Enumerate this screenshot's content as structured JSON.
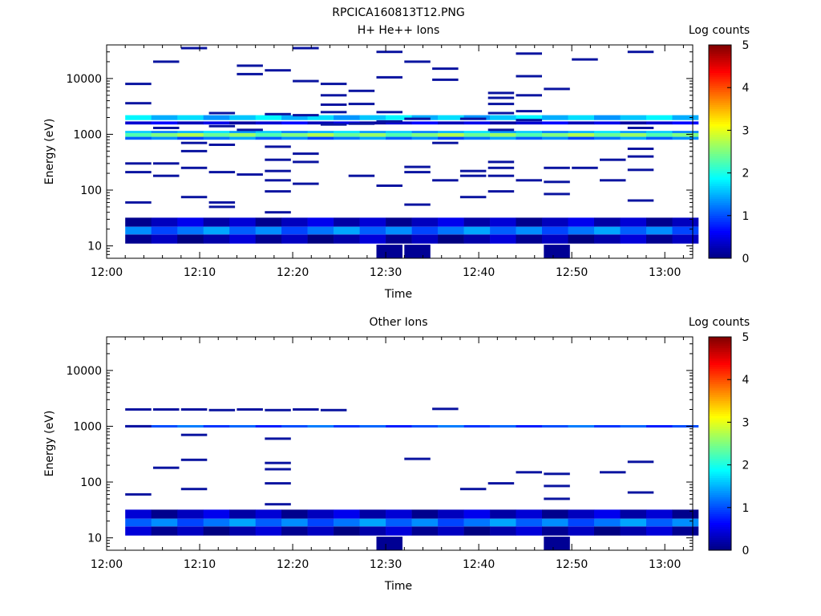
{
  "figure": {
    "title": "RPCICA160813T12.PNG"
  },
  "colors": {
    "band_top": [
      "#1e3cff",
      "#00c8ff",
      "#00e0c0",
      "#b4e01e",
      "#e6e61e",
      "#60e080",
      "#1e64ff"
    ],
    "band_mid": "#0a14b4",
    "low_bands": [
      "#0000a0",
      "#1e50ff",
      "#14b4ff",
      "#0a14c8"
    ]
  },
  "chart_data": [
    {
      "type": "heatmap",
      "title": "H+ He++ Ions",
      "xlabel": "Time",
      "ylabel": "Energy (eV)",
      "yscale": "log",
      "ylim": [
        6,
        40000
      ],
      "xlim": [
        "12:00",
        "13:03"
      ],
      "x_ticks": [
        "12:00",
        "12:10",
        "12:20",
        "12:30",
        "12:40",
        "12:50",
        "13:00"
      ],
      "y_ticks": [
        "10",
        "100",
        "1000",
        "10000"
      ],
      "colorbar": {
        "label": "Log counts",
        "ticks": [
          "0",
          "1",
          "2",
          "3",
          "4",
          "5"
        ],
        "range": [
          0,
          5
        ]
      },
      "scan_interval_minutes": 2.8,
      "scans_start": "12:02",
      "scans_end": "13:03",
      "bands": [
        {
          "e_low": 900,
          "e_high": 1050,
          "value": 2.5
        },
        {
          "e_low": 1050,
          "e_high": 1150,
          "value": 1.5
        },
        {
          "e_low": 800,
          "e_high": 900,
          "value": 1.2
        },
        {
          "e_low": 1800,
          "e_high": 2200,
          "value": 1.6
        },
        {
          "e_low": 1500,
          "e_high": 1700,
          "value": 0.4
        },
        {
          "e_low": 22,
          "e_high": 32,
          "value": 0.3
        },
        {
          "e_low": 16,
          "e_high": 22,
          "value": 1.2
        },
        {
          "e_low": 11,
          "e_high": 16,
          "value": 0.2
        }
      ],
      "lines": [
        {
          "t": "12:02",
          "e": 8000
        },
        {
          "t": "12:02",
          "e": 3600
        },
        {
          "t": "12:02",
          "e": 300
        },
        {
          "t": "12:02",
          "e": 210
        },
        {
          "t": "12:02",
          "e": 60
        },
        {
          "t": "12:05",
          "e": 20000
        },
        {
          "t": "12:05",
          "e": 1300
        },
        {
          "t": "12:05",
          "e": 300
        },
        {
          "t": "12:05",
          "e": 180
        },
        {
          "t": "12:08",
          "e": 35000
        },
        {
          "t": "12:08",
          "e": 700
        },
        {
          "t": "12:08",
          "e": 500
        },
        {
          "t": "12:08",
          "e": 250
        },
        {
          "t": "12:08",
          "e": 75
        },
        {
          "t": "12:11",
          "e": 2400
        },
        {
          "t": "12:11",
          "e": 1400
        },
        {
          "t": "12:11",
          "e": 650
        },
        {
          "t": "12:11",
          "e": 210
        },
        {
          "t": "12:11",
          "e": 60
        },
        {
          "t": "12:11",
          "e": 50
        },
        {
          "t": "12:14",
          "e": 17000
        },
        {
          "t": "12:14",
          "e": 12000
        },
        {
          "t": "12:14",
          "e": 1200
        },
        {
          "t": "12:14",
          "e": 190
        },
        {
          "t": "12:17",
          "e": 14000
        },
        {
          "t": "12:17",
          "e": 2300
        },
        {
          "t": "12:17",
          "e": 600
        },
        {
          "t": "12:17",
          "e": 350
        },
        {
          "t": "12:17",
          "e": 220
        },
        {
          "t": "12:17",
          "e": 150
        },
        {
          "t": "12:17",
          "e": 95
        },
        {
          "t": "12:17",
          "e": 40
        },
        {
          "t": "12:20",
          "e": 35000
        },
        {
          "t": "12:20",
          "e": 9000
        },
        {
          "t": "12:20",
          "e": 2200
        },
        {
          "t": "12:20",
          "e": 450
        },
        {
          "t": "12:20",
          "e": 320
        },
        {
          "t": "12:20",
          "e": 130
        },
        {
          "t": "12:23",
          "e": 8000
        },
        {
          "t": "12:23",
          "e": 5000
        },
        {
          "t": "12:23",
          "e": 3400
        },
        {
          "t": "12:23",
          "e": 2500
        },
        {
          "t": "12:23",
          "e": 1500
        },
        {
          "t": "12:26",
          "e": 6000
        },
        {
          "t": "12:26",
          "e": 3500
        },
        {
          "t": "12:26",
          "e": 1550
        },
        {
          "t": "12:26",
          "e": 180
        },
        {
          "t": "12:29",
          "e": 30000
        },
        {
          "t": "12:29",
          "e": 10500
        },
        {
          "t": "12:29",
          "e": 2500
        },
        {
          "t": "12:29",
          "e": 1700
        },
        {
          "t": "12:29",
          "e": 120
        },
        {
          "t": "12:32",
          "e": 20000
        },
        {
          "t": "12:32",
          "e": 1900
        },
        {
          "t": "12:32",
          "e": 260
        },
        {
          "t": "12:32",
          "e": 210
        },
        {
          "t": "12:32",
          "e": 55
        },
        {
          "t": "12:35",
          "e": 15000
        },
        {
          "t": "12:35",
          "e": 9500
        },
        {
          "t": "12:35",
          "e": 700
        },
        {
          "t": "12:35",
          "e": 150
        },
        {
          "t": "12:38",
          "e": 1900
        },
        {
          "t": "12:38",
          "e": 220
        },
        {
          "t": "12:38",
          "e": 180
        },
        {
          "t": "12:38",
          "e": 75
        },
        {
          "t": "12:41",
          "e": 5500
        },
        {
          "t": "12:41",
          "e": 4500
        },
        {
          "t": "12:41",
          "e": 3500
        },
        {
          "t": "12:41",
          "e": 2400
        },
        {
          "t": "12:41",
          "e": 1200
        },
        {
          "t": "12:41",
          "e": 320
        },
        {
          "t": "12:41",
          "e": 250
        },
        {
          "t": "12:41",
          "e": 180
        },
        {
          "t": "12:41",
          "e": 95
        },
        {
          "t": "12:44",
          "e": 28000
        },
        {
          "t": "12:44",
          "e": 11000
        },
        {
          "t": "12:44",
          "e": 5000
        },
        {
          "t": "12:44",
          "e": 2600
        },
        {
          "t": "12:44",
          "e": 1800
        },
        {
          "t": "12:44",
          "e": 150
        },
        {
          "t": "12:47",
          "e": 6500
        },
        {
          "t": "12:47",
          "e": 250
        },
        {
          "t": "12:47",
          "e": 140
        },
        {
          "t": "12:47",
          "e": 85
        },
        {
          "t": "12:50",
          "e": 22000
        },
        {
          "t": "12:50",
          "e": 250
        },
        {
          "t": "12:53",
          "e": 350
        },
        {
          "t": "12:53",
          "e": 150
        },
        {
          "t": "12:56",
          "e": 30000
        },
        {
          "t": "12:56",
          "e": 1300
        },
        {
          "t": "12:56",
          "e": 550
        },
        {
          "t": "12:56",
          "e": 400
        },
        {
          "t": "12:56",
          "e": 230
        },
        {
          "t": "12:56",
          "e": 65
        }
      ],
      "low_cells": [
        {
          "t": "12:29",
          "e_low": 6,
          "e_high": 10.5,
          "value": 0.1
        },
        {
          "t": "12:32",
          "e_low": 6,
          "e_high": 10.5,
          "value": 0.1
        },
        {
          "t": "12:47",
          "e_low": 6,
          "e_high": 10.5,
          "value": 0.1
        }
      ]
    },
    {
      "type": "heatmap",
      "title": "Other Ions",
      "xlabel": "Time",
      "ylabel": "Energy (eV)",
      "yscale": "log",
      "ylim": [
        6,
        40000
      ],
      "xlim": [
        "12:00",
        "13:03"
      ],
      "x_ticks": [
        "12:00",
        "12:10",
        "12:20",
        "12:30",
        "12:40",
        "12:50",
        "13:00"
      ],
      "y_ticks": [
        "10",
        "100",
        "1000",
        "10000"
      ],
      "colorbar": {
        "label": "Log counts",
        "ticks": [
          "0",
          "1",
          "2",
          "3",
          "4",
          "5"
        ],
        "range": [
          0,
          5
        ]
      },
      "scan_interval_minutes": 2.8,
      "scans_start": "12:02",
      "scans_end": "13:03",
      "bands": [
        {
          "e_low": 950,
          "e_high": 1050,
          "value": 1.0
        },
        {
          "e_low": 22,
          "e_high": 32,
          "value": 0.3
        },
        {
          "e_low": 16,
          "e_high": 22,
          "value": 1.2
        },
        {
          "e_low": 11,
          "e_high": 16,
          "value": 0.2
        }
      ],
      "lines": [
        {
          "t": "12:02",
          "e": 2000
        },
        {
          "t": "12:02",
          "e": 1000
        },
        {
          "t": "12:02",
          "e": 60
        },
        {
          "t": "12:05",
          "e": 2000
        },
        {
          "t": "12:05",
          "e": 180
        },
        {
          "t": "12:08",
          "e": 2000
        },
        {
          "t": "12:08",
          "e": 700
        },
        {
          "t": "12:08",
          "e": 250
        },
        {
          "t": "12:08",
          "e": 75
        },
        {
          "t": "12:11",
          "e": 1950
        },
        {
          "t": "12:14",
          "e": 2000
        },
        {
          "t": "12:17",
          "e": 1950
        },
        {
          "t": "12:17",
          "e": 600
        },
        {
          "t": "12:17",
          "e": 220
        },
        {
          "t": "12:17",
          "e": 170
        },
        {
          "t": "12:17",
          "e": 95
        },
        {
          "t": "12:17",
          "e": 40
        },
        {
          "t": "12:20",
          "e": 2000
        },
        {
          "t": "12:23",
          "e": 1950
        },
        {
          "t": "12:32",
          "e": 260
        },
        {
          "t": "12:35",
          "e": 2050
        },
        {
          "t": "12:38",
          "e": 75
        },
        {
          "t": "12:41",
          "e": 95
        },
        {
          "t": "12:44",
          "e": 150
        },
        {
          "t": "12:47",
          "e": 140
        },
        {
          "t": "12:47",
          "e": 85
        },
        {
          "t": "12:47",
          "e": 50
        },
        {
          "t": "12:53",
          "e": 150
        },
        {
          "t": "12:56",
          "e": 230
        },
        {
          "t": "12:56",
          "e": 65
        }
      ],
      "low_cells": [
        {
          "t": "12:29",
          "e_low": 6,
          "e_high": 10.5,
          "value": 0.1
        },
        {
          "t": "12:47",
          "e_low": 6,
          "e_high": 10.5,
          "value": 0.1
        }
      ]
    }
  ]
}
